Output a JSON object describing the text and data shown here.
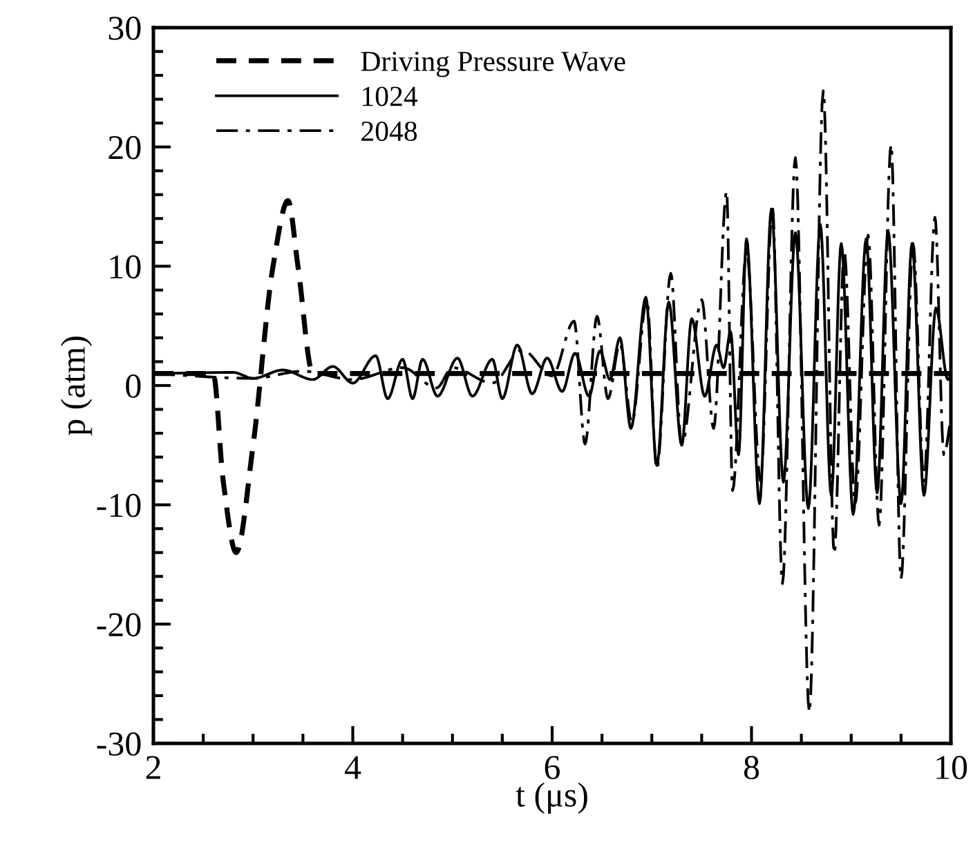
{
  "chart_data": {
    "type": "line",
    "xlabel": "t (μs)",
    "ylabel": "p (atm)",
    "xlim": [
      2,
      10
    ],
    "xticks": [
      2,
      4,
      6,
      8,
      10
    ],
    "ylim": [
      -30,
      30
    ],
    "yticks": [
      -30,
      -20,
      -10,
      0,
      10,
      20,
      30
    ],
    "grid": false,
    "legend": "top left",
    "series": [
      {
        "name": "Driving Pressure Wave",
        "color": "#000000",
        "line_style": "dashed",
        "x": [
          2,
          2.6,
          2.7,
          2.83,
          3.0,
          3.2,
          3.35,
          3.45,
          3.6,
          10
        ],
        "values": [
          1,
          1,
          -8,
          -14,
          -5,
          10,
          15.5,
          10,
          1,
          1
        ]
      },
      {
        "name": "1024",
        "color": "#000000",
        "line_style": "solid",
        "x": [
          2,
          2.8,
          3.0,
          3.3,
          3.6,
          3.8,
          4.0,
          4.23,
          4.35,
          4.5,
          4.6,
          4.7,
          4.85,
          5.05,
          5.2,
          5.4,
          5.5,
          5.65,
          5.8,
          5.95,
          6.1,
          6.23,
          6.37,
          6.48,
          6.58,
          6.68,
          6.79,
          6.94,
          7.05,
          7.17,
          7.3,
          7.4,
          7.53,
          7.65,
          7.72,
          7.79,
          7.87,
          7.95,
          8.08,
          8.2,
          8.32,
          8.44,
          8.57,
          8.69,
          8.8,
          8.9,
          9.02,
          9.15,
          9.26,
          9.37,
          9.5,
          9.61,
          9.73,
          9.85,
          9.97,
          10
        ],
        "values": [
          1,
          1.1,
          0.6,
          1.3,
          0.5,
          1.6,
          0.2,
          2.5,
          -1.1,
          2.2,
          -1.1,
          2.2,
          -0.9,
          2.3,
          -0.9,
          2.2,
          -1.1,
          3.4,
          -0.7,
          2.3,
          -0.5,
          2.7,
          -0.9,
          2.9,
          0.5,
          4,
          -3.6,
          7.4,
          -6.7,
          7.0,
          -5,
          5.6,
          -0.9,
          3.4,
          1.5,
          4.5,
          -5.8,
          12.3,
          -9.9,
          14.8,
          -8.1,
          12.8,
          -10.3,
          13.5,
          -9.2,
          11.9,
          -10.8,
          12.3,
          -9,
          13,
          -9.9,
          11.9,
          -9.2,
          6.5,
          0.5,
          0.9
        ]
      },
      {
        "name": "2048",
        "color": "#000000",
        "line_style": "dashdot",
        "x": [
          2,
          3.0,
          3.5,
          4.0,
          4.5,
          4.84,
          5.0,
          5.4,
          5.7,
          6.0,
          6.22,
          6.33,
          6.45,
          6.56,
          6.68,
          6.8,
          6.95,
          7.05,
          7.19,
          7.3,
          7.5,
          7.62,
          7.75,
          7.81,
          7.95,
          8.09,
          8.21,
          8.31,
          8.44,
          8.58,
          8.72,
          8.83,
          8.93,
          9.04,
          9.17,
          9.28,
          9.4,
          9.5,
          9.62,
          9.73,
          9.84,
          9.93,
          10
        ],
        "values": [
          1,
          0.6,
          1.2,
          0.5,
          1.5,
          -0.2,
          1.5,
          0.2,
          3,
          0.8,
          5.4,
          -4.9,
          5.8,
          -1.1,
          3.5,
          -3.1,
          7.2,
          -7,
          9.4,
          -5,
          7.2,
          -3.6,
          16.3,
          -8.8,
          11.3,
          -8,
          15,
          -16.6,
          19.1,
          -27.4,
          24.7,
          -14.1,
          11.3,
          -9.9,
          12.6,
          -11.7,
          20.2,
          -16.2,
          11.9,
          -8,
          14.1,
          -5.8,
          -2.7
        ]
      }
    ]
  }
}
